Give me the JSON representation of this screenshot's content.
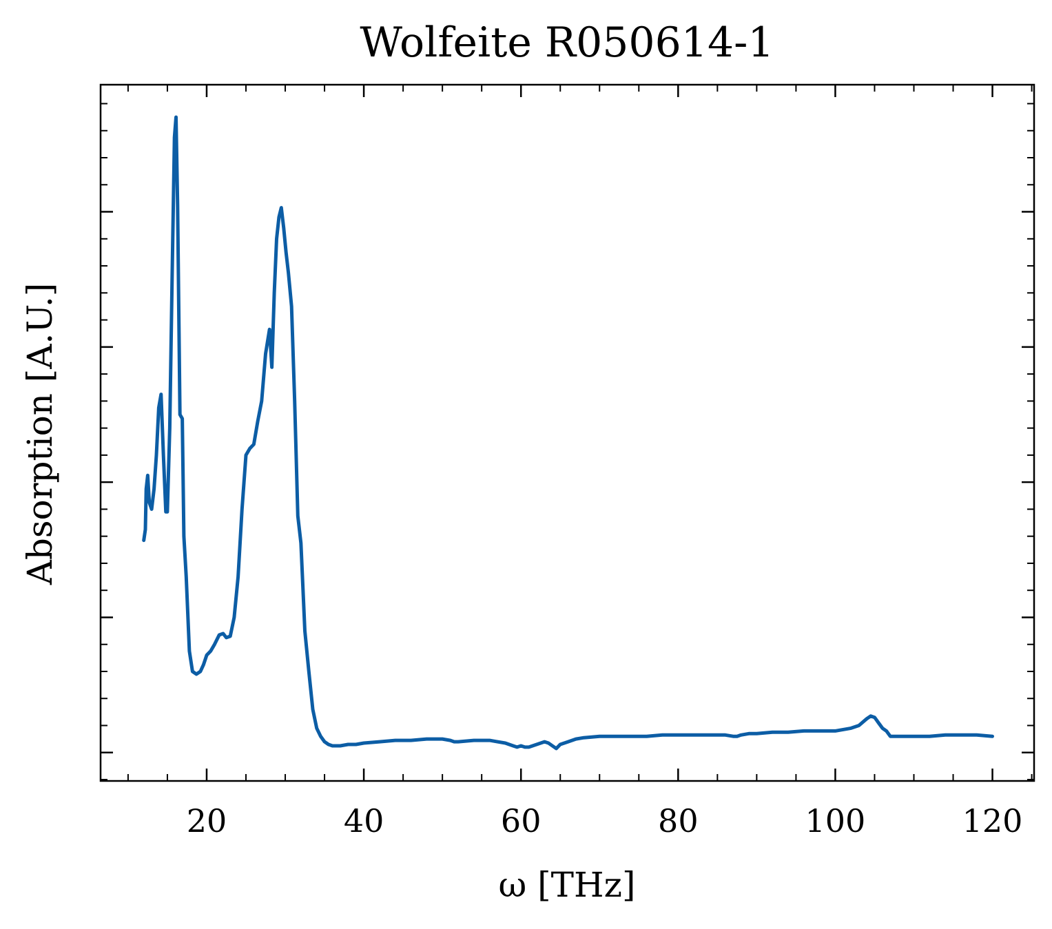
{
  "chart_data": {
    "type": "line",
    "title": "Wolfeite R050614-1",
    "xlabel": "ω [THz]",
    "ylabel": "Absorption [A.U.]",
    "xlim": [
      6.5,
      125.3
    ],
    "ylim": [
      -0.021,
      0.494
    ],
    "x_major_ticks": [
      20,
      40,
      60,
      80,
      100,
      120
    ],
    "x_tick_labels": [
      "20",
      "40",
      "60",
      "80",
      "100",
      "120"
    ],
    "x_minor_step": 5,
    "y_major_ticks": [
      0,
      0.1,
      0.2,
      0.3,
      0.4
    ],
    "y_tick_labels": [
      "",
      "",
      "",
      "",
      ""
    ],
    "y_minor_step": 0.02,
    "grid": false,
    "legend": "none",
    "colors": {
      "line": "#0c5da5",
      "axes": "#000000"
    },
    "series": [
      {
        "x": [
          12.0,
          12.2,
          12.3,
          12.5,
          12.7,
          13.0,
          13.3,
          13.6,
          13.9,
          14.2,
          14.5,
          14.8,
          15.0,
          15.3,
          15.6,
          15.9,
          16.1,
          16.3,
          16.6,
          16.9,
          17.1,
          17.4,
          17.8,
          18.2,
          18.7,
          19.2,
          19.6,
          20.0,
          20.5,
          21.0,
          21.6,
          22.1,
          22.5,
          23.0,
          23.5,
          24.0,
          24.5,
          25.0,
          25.5,
          26.0,
          26.5,
          27.0,
          27.5,
          28.0,
          28.3,
          28.6,
          28.9,
          29.2,
          29.5,
          29.8,
          30.1,
          30.4,
          30.8,
          31.2,
          31.6,
          32.0,
          32.5,
          33.0,
          33.5,
          34.0,
          34.5,
          35.0,
          35.5,
          36.0,
          36.5,
          37.0,
          38.0,
          39.0,
          40.0,
          42.0,
          44.0,
          46.0,
          48.0,
          50.0,
          51.0,
          51.5,
          52.0,
          54.0,
          56.0,
          57.0,
          58.0,
          59.0,
          59.5,
          60.0,
          60.5,
          61.0,
          62.0,
          63.0,
          63.5,
          64.0,
          64.5,
          65.0,
          66.0,
          67.0,
          68.0,
          70.0,
          72.0,
          74.0,
          76.0,
          78.0,
          80.0,
          82.0,
          84.0,
          86.0,
          87.0,
          87.5,
          88.0,
          89.0,
          90.0,
          92.0,
          94.0,
          96.0,
          98.0,
          100.0,
          102.0,
          103.0,
          104.0,
          104.5,
          105.0,
          105.5,
          106.0,
          106.5,
          107.0,
          108.0,
          110.0,
          112.0,
          114.0,
          116.0,
          118.0,
          120.0
        ],
        "y": [
          0.157,
          0.165,
          0.195,
          0.205,
          0.185,
          0.18,
          0.195,
          0.22,
          0.255,
          0.265,
          0.22,
          0.178,
          0.178,
          0.24,
          0.35,
          0.455,
          0.47,
          0.405,
          0.25,
          0.247,
          0.16,
          0.13,
          0.075,
          0.06,
          0.058,
          0.06,
          0.065,
          0.072,
          0.075,
          0.08,
          0.087,
          0.088,
          0.085,
          0.086,
          0.1,
          0.13,
          0.18,
          0.22,
          0.225,
          0.228,
          0.245,
          0.26,
          0.295,
          0.313,
          0.285,
          0.34,
          0.38,
          0.396,
          0.403,
          0.388,
          0.37,
          0.355,
          0.33,
          0.26,
          0.175,
          0.155,
          0.09,
          0.06,
          0.032,
          0.018,
          0.012,
          0.008,
          0.006,
          0.005,
          0.005,
          0.005,
          0.006,
          0.006,
          0.007,
          0.008,
          0.009,
          0.009,
          0.01,
          0.01,
          0.009,
          0.008,
          0.008,
          0.009,
          0.009,
          0.008,
          0.007,
          0.005,
          0.004,
          0.005,
          0.004,
          0.004,
          0.006,
          0.008,
          0.007,
          0.005,
          0.003,
          0.006,
          0.008,
          0.01,
          0.011,
          0.012,
          0.012,
          0.012,
          0.012,
          0.013,
          0.013,
          0.013,
          0.013,
          0.013,
          0.012,
          0.012,
          0.013,
          0.014,
          0.014,
          0.015,
          0.015,
          0.016,
          0.016,
          0.016,
          0.018,
          0.02,
          0.025,
          0.027,
          0.026,
          0.022,
          0.018,
          0.016,
          0.012,
          0.012,
          0.012,
          0.012,
          0.013,
          0.013,
          0.013,
          0.012
        ]
      }
    ]
  }
}
